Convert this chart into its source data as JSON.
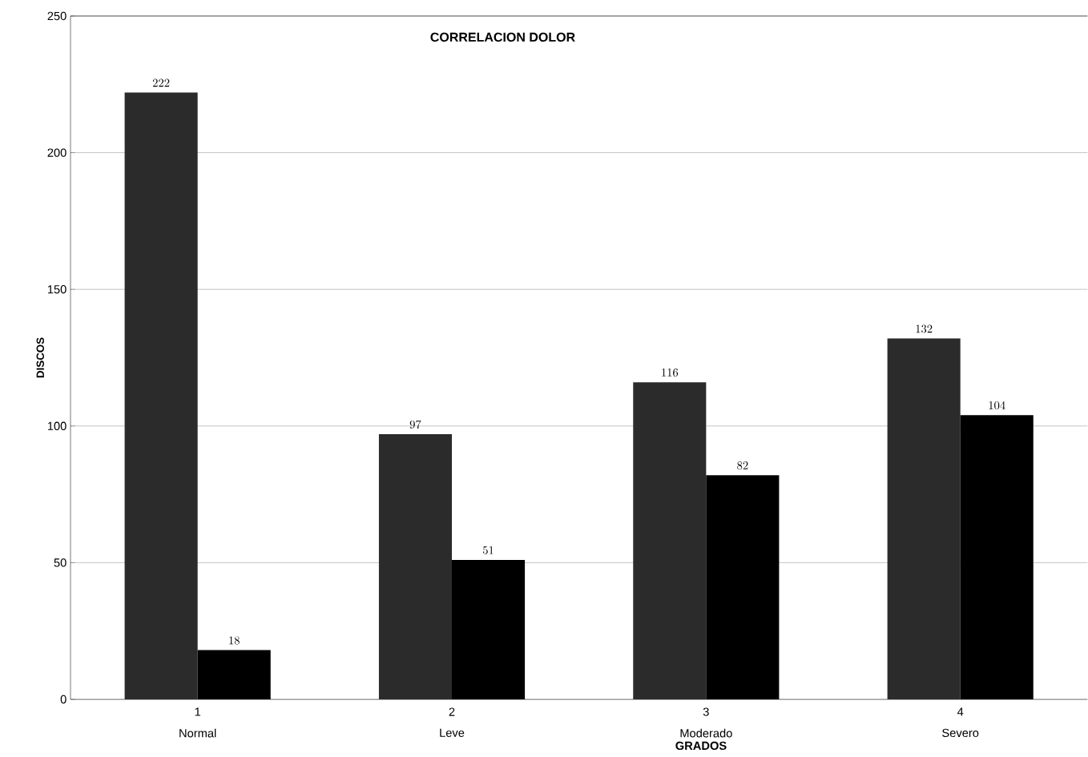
{
  "chart_data": {
    "type": "bar",
    "title": "CORRELACION DOLOR",
    "xlabel": "GRADOS",
    "ylabel": "DISCOS",
    "categories": [
      "1",
      "2",
      "3",
      "4"
    ],
    "annotations": [
      "Normal",
      "Leve",
      "Moderado",
      "Severo"
    ],
    "series": [
      {
        "color": "#2b2b2b",
        "values": [
          222,
          97,
          116,
          132
        ]
      },
      {
        "color": "#000000",
        "values": [
          18,
          51,
          82,
          104
        ]
      }
    ],
    "ylim": [
      0,
      250
    ],
    "yticks": [
      0,
      50,
      100,
      150,
      200,
      250
    ],
    "grid": "y",
    "data_labels": true
  }
}
